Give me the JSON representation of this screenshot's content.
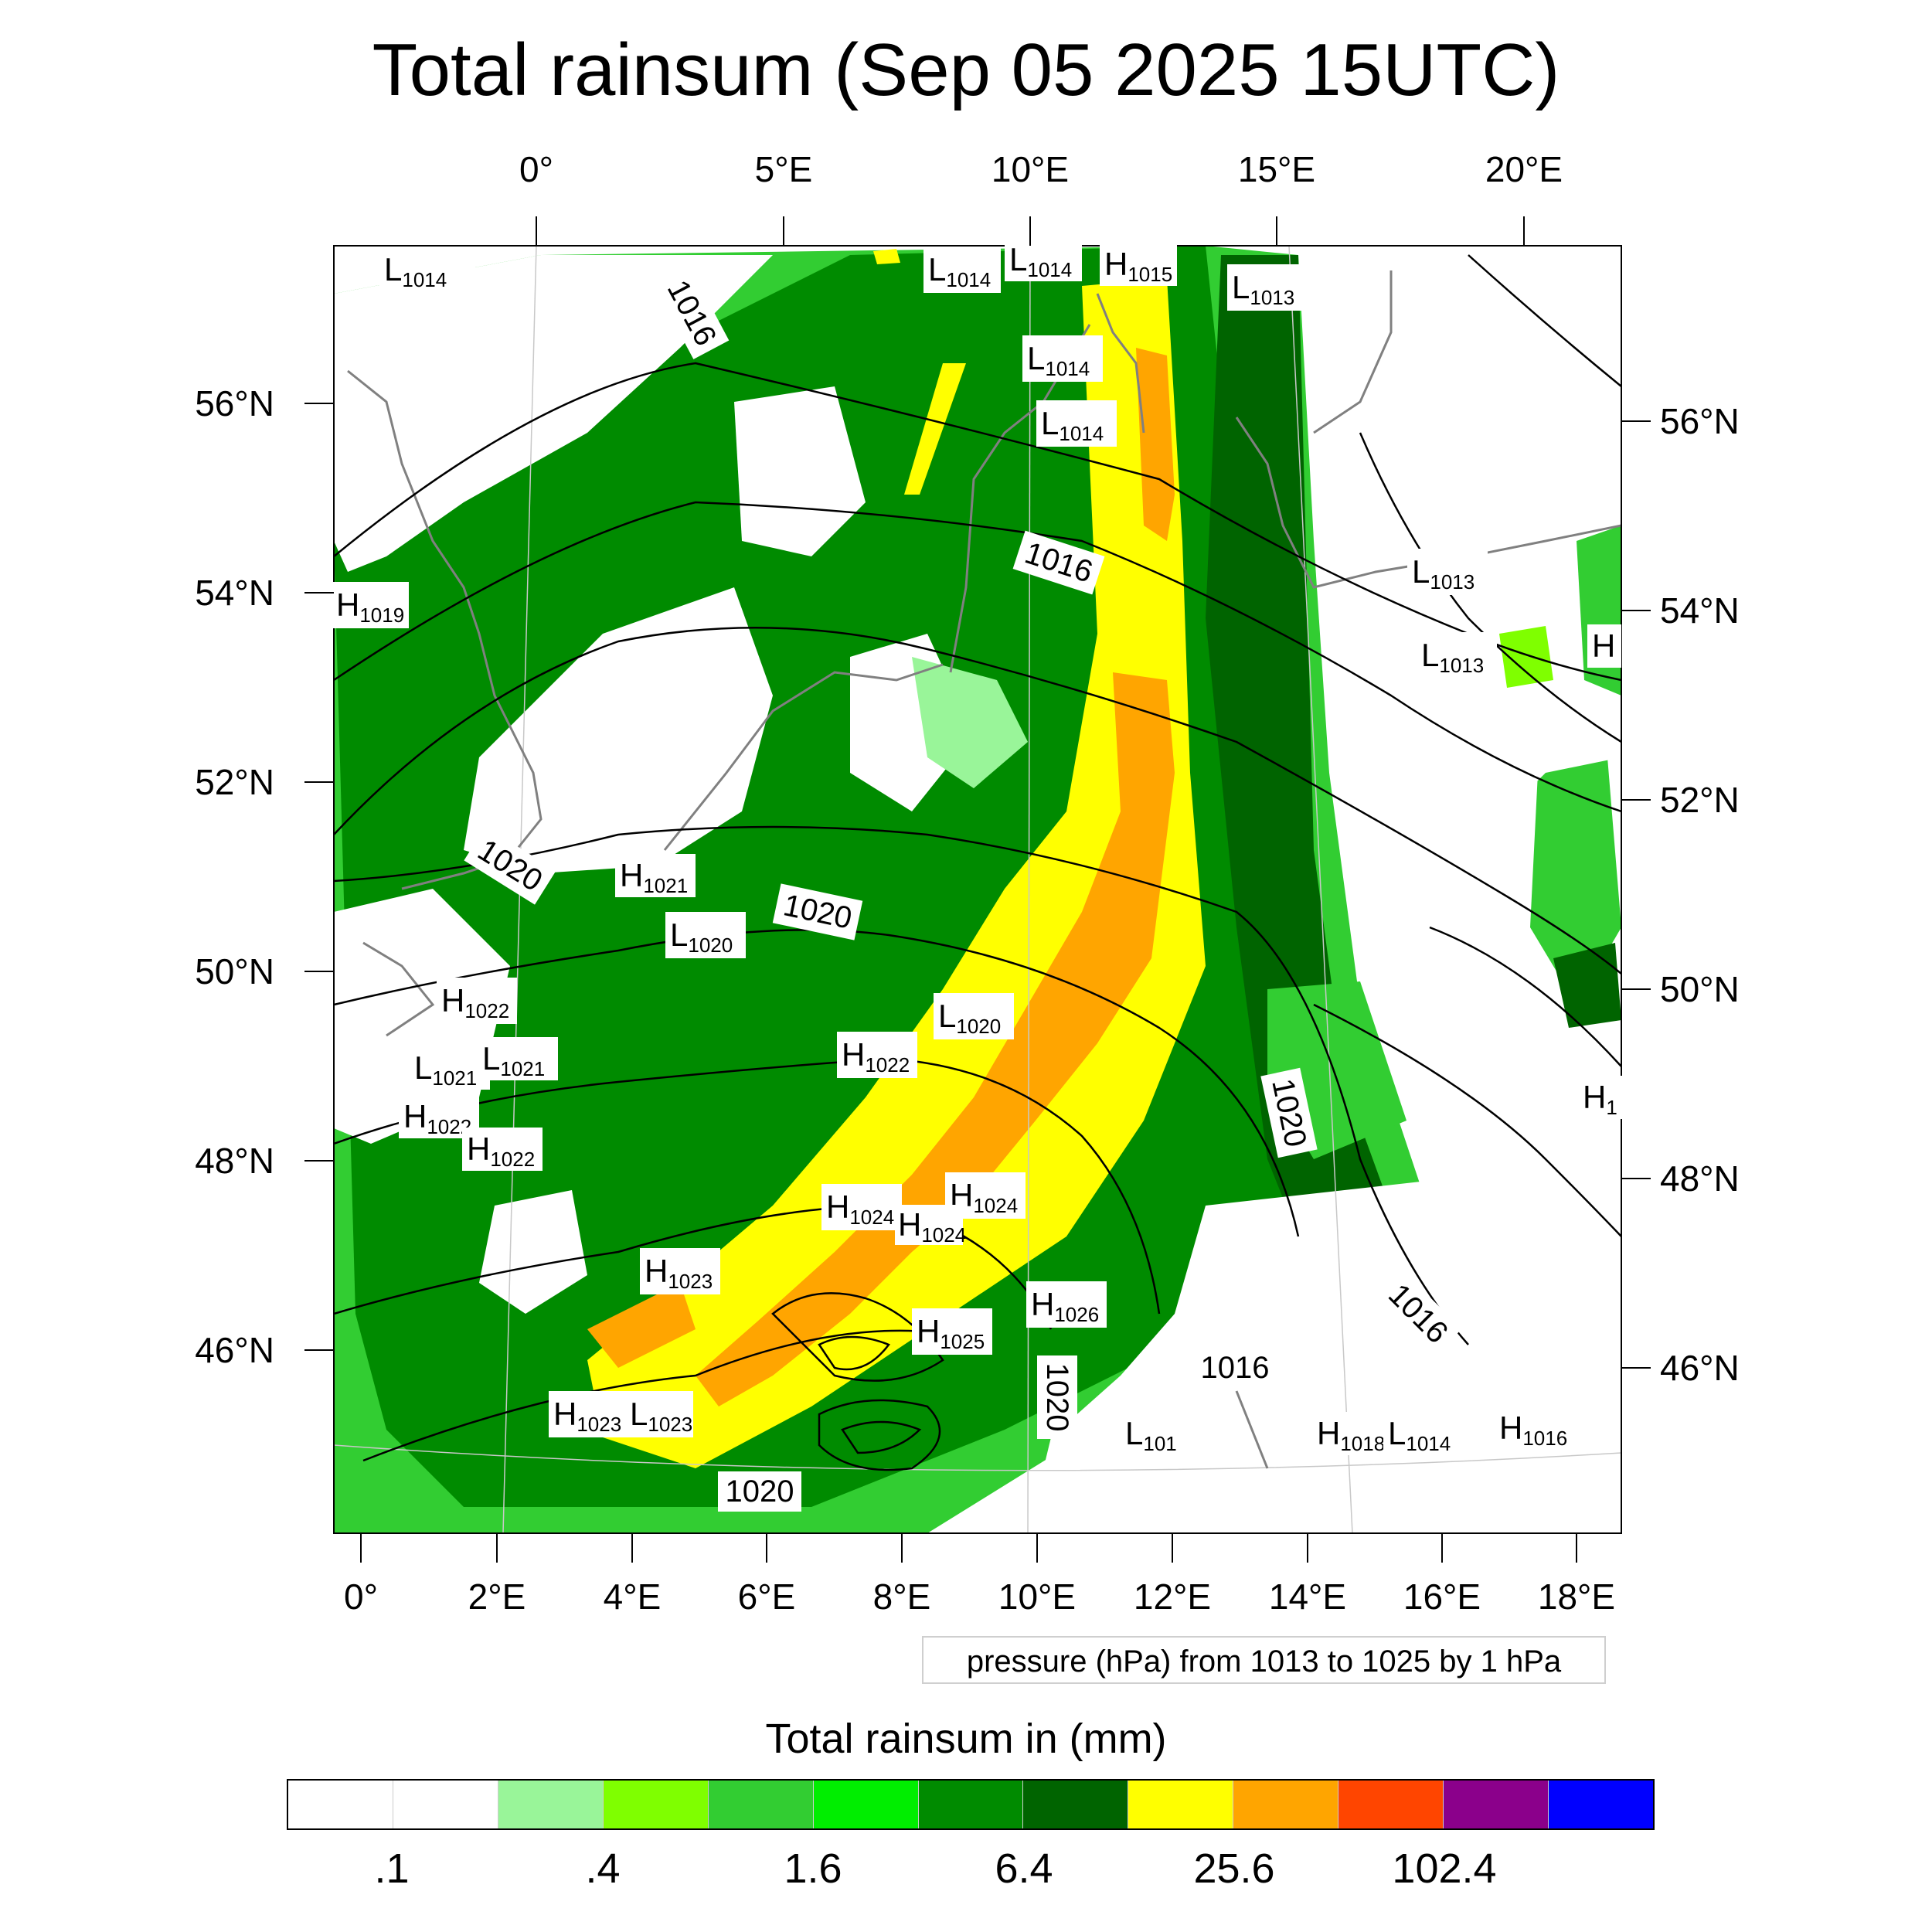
{
  "title": "Total rainsum (Sep 05 2025 15UTC)",
  "top_axis_labels": [
    "0°",
    "5°E",
    "10°E",
    "15°E",
    "20°E"
  ],
  "bottom_axis_labels": [
    "0°",
    "2°E",
    "4°E",
    "6°E",
    "8°E",
    "10°E",
    "12°E",
    "14°E",
    "16°E",
    "18°E"
  ],
  "left_axis_labels": [
    "56°N",
    "54°N",
    "52°N",
    "50°N",
    "48°N",
    "46°N"
  ],
  "right_axis_labels": [
    "56°N",
    "54°N",
    "52°N",
    "50°N",
    "48°N",
    "46°N"
  ],
  "isobar_labels": [
    "1016",
    "1016",
    "1020",
    "1020",
    "1020",
    "1016",
    "1016",
    "1020",
    "1020"
  ],
  "pressure_centers": [
    {
      "type": "L",
      "value": "1014"
    },
    {
      "type": "L",
      "value": "1014"
    },
    {
      "type": "L",
      "value": "1014"
    },
    {
      "type": "H",
      "value": "1015"
    },
    {
      "type": "L",
      "value": "1013"
    },
    {
      "type": "L",
      "value": "1014"
    },
    {
      "type": "L",
      "value": "1014"
    },
    {
      "type": "L",
      "value": "1013"
    },
    {
      "type": "L",
      "value": "1013"
    },
    {
      "type": "H",
      "value": "1019"
    },
    {
      "type": "H",
      "value": ""
    },
    {
      "type": "H",
      "value": "1021"
    },
    {
      "type": "L",
      "value": "1020"
    },
    {
      "type": "H",
      "value": "1022"
    },
    {
      "type": "L",
      "value": "1020"
    },
    {
      "type": "H",
      "value": "1022"
    },
    {
      "type": "L",
      "value": "1021"
    },
    {
      "type": "L",
      "value": "1021"
    },
    {
      "type": "H",
      "value": "1022"
    },
    {
      "type": "H",
      "value": "1022"
    },
    {
      "type": "H",
      "value": "1024"
    },
    {
      "type": "H",
      "value": "1024"
    },
    {
      "type": "H",
      "value": "1024"
    },
    {
      "type": "H",
      "value": "1023"
    },
    {
      "type": "H",
      "value": "1026"
    },
    {
      "type": "H",
      "value": "1025"
    },
    {
      "type": "H",
      "value": "1023"
    },
    {
      "type": "L",
      "value": "1023"
    },
    {
      "type": "L",
      "value": "101"
    },
    {
      "type": "H",
      "value": "1018"
    },
    {
      "type": "L",
      "value": "1014"
    },
    {
      "type": "H",
      "value": "1016"
    },
    {
      "type": "H",
      "value": "1"
    }
  ],
  "pressure_note": "pressure (hPa) from 1013 to 1025 by 1 hPa",
  "legend": {
    "title": "Total rainsum in (mm)",
    "colors": [
      "#ffffff",
      "#ffffff",
      "#99f599",
      "#7fff00",
      "#32cd32",
      "#00ee00",
      "#008b00",
      "#006400",
      "#ffff00",
      "#ffa500",
      "#ff4500",
      "#8b008b",
      "#0000ff"
    ],
    "tick_labels": [
      ".1",
      ".4",
      "1.6",
      "6.4",
      "25.6",
      "102.4"
    ]
  }
}
